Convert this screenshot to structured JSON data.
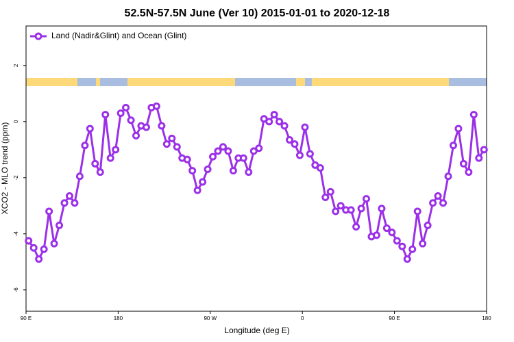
{
  "chart_data": {
    "type": "line",
    "title": "52.5N-57.5N June (Ver 10)   2015-01-01 to 2020-12-18",
    "x_label": "Longitude (deg E)",
    "y_label": "XCO2 - MLO trend (ppm)",
    "x": [
      92.5,
      97.5,
      102.5,
      107.5,
      112.5,
      117.5,
      122.5,
      127.5,
      132.5,
      137.5,
      142.5,
      147.5,
      152.5,
      157.5,
      162.5,
      167.5,
      172.5,
      177.5,
      182.5,
      187.5,
      192.5,
      197.5,
      202.5,
      207.5,
      212.5,
      217.5,
      222.5,
      227.5,
      232.5,
      237.5,
      242.5,
      247.5,
      252.5,
      257.5,
      262.5,
      267.5,
      272.5,
      277.5,
      282.5,
      287.5,
      292.5,
      297.5,
      302.5,
      307.5,
      312.5,
      317.5,
      322.5,
      327.5,
      332.5,
      337.5,
      342.5,
      347.5,
      352.5,
      357.5,
      362.5,
      367.5,
      372.5,
      377.5,
      382.5,
      387.5,
      392.5,
      397.5,
      402.5,
      407.5,
      412.5,
      417.5,
      422.5,
      427.5,
      432.5,
      437.5,
      442.5,
      447.5,
      452.5,
      457.5,
      462.5,
      467.5,
      472.5,
      477.5,
      482.5,
      487.5,
      492.5,
      497.5,
      502.5,
      507.5,
      512.5,
      517.5,
      522.5,
      527.5,
      532.5,
      537.5
    ],
    "series": [
      {
        "name": "Land (Nadir&Glint) and Ocean (Glint)",
        "color": "#9b30e8",
        "values": [
          -4.25,
          -4.5,
          -4.9,
          -4.55,
          -3.2,
          -4.35,
          -3.7,
          -2.9,
          -2.65,
          -2.9,
          -1.95,
          -0.85,
          -0.25,
          -1.5,
          -1.8,
          0.25,
          -1.3,
          -1.0,
          0.3,
          0.5,
          0.05,
          -0.5,
          -0.15,
          -0.2,
          0.5,
          0.55,
          -0.15,
          -0.8,
          -0.6,
          -0.9,
          -1.3,
          -1.35,
          -1.75,
          -2.45,
          -2.15,
          -1.7,
          -1.25,
          -1.05,
          -0.9,
          -1.05,
          -1.75,
          -1.3,
          -1.3,
          -1.8,
          -1.05,
          -0.95,
          0.1,
          0.0,
          0.25,
          0.0,
          -0.15,
          -0.65,
          -0.8,
          -1.2,
          -0.2,
          -1.15,
          -1.55,
          -1.65,
          -2.7,
          -2.5,
          -3.2,
          -3.0,
          -3.15,
          -3.15,
          -3.75,
          -3.1,
          -2.75,
          -4.1,
          -4.05,
          -3.1,
          -3.8,
          -3.95,
          -4.25,
          -4.45,
          -4.9,
          -4.55,
          -3.2,
          -4.35,
          -3.7,
          -2.9,
          -2.65,
          -2.9,
          -1.95,
          -0.85,
          -0.25,
          -1.5,
          -1.8,
          0.25,
          -1.3,
          -1.0
        ]
      }
    ],
    "xlim": [
      90,
      540
    ],
    "xticks": [
      {
        "value": 90,
        "label": "90 E"
      },
      180,
      {
        "value": 270,
        "label": "90 W"
      },
      {
        "value": 360,
        "label": "0"
      },
      {
        "value": 450,
        "label": "90 E"
      },
      {
        "value": 540,
        "label": "180"
      }
    ],
    "ylim": [
      -6.76,
      3.41
    ],
    "yticks": [
      -6,
      -4,
      -2,
      0,
      2
    ],
    "grid": false
  }
}
